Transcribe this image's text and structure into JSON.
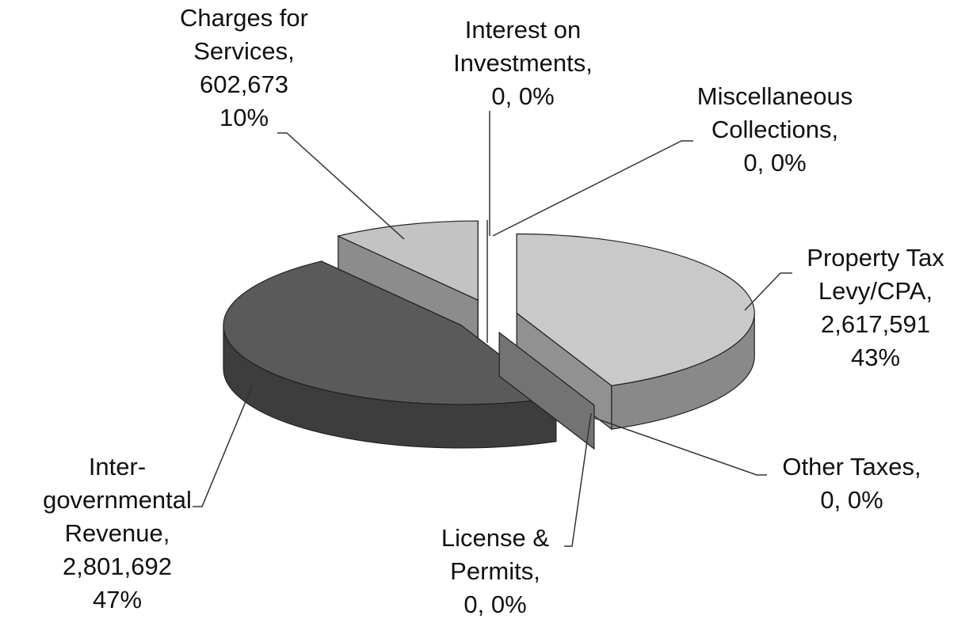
{
  "chart_data": {
    "type": "pie3d",
    "slices": [
      {
        "label_lines": [
          "Property Tax",
          "Levy/CPA,",
          "2,617,591",
          "43%"
        ],
        "value": 2617591,
        "percent": 43,
        "color": "#c9c9c9"
      },
      {
        "label_lines": [
          "Other Taxes,",
          "0, 0%"
        ],
        "value": 0,
        "percent": 0,
        "color": "#a0a0a0"
      },
      {
        "label_lines": [
          "License &",
          "Permits,",
          "0, 0%"
        ],
        "value": 0,
        "percent": 0,
        "color": "#a0a0a0"
      },
      {
        "label_lines": [
          "Inter-",
          "governmental",
          "Revenue,",
          "2,801,692",
          "47%"
        ],
        "value": 2801692,
        "percent": 47,
        "color": "#5a5a5a"
      },
      {
        "label_lines": [
          "Charges for",
          "Services,",
          "602,673",
          "10%"
        ],
        "value": 602673,
        "percent": 10,
        "color": "#c3c3c3"
      },
      {
        "label_lines": [
          "Interest on",
          "Investments,",
          "0, 0%"
        ],
        "value": 0,
        "percent": 0,
        "color": "#d8d8d8"
      },
      {
        "label_lines": [
          "Miscellaneous",
          "Collections,",
          "0, 0%"
        ],
        "value": 0,
        "percent": 0,
        "color": "#d8d8d8"
      }
    ]
  }
}
